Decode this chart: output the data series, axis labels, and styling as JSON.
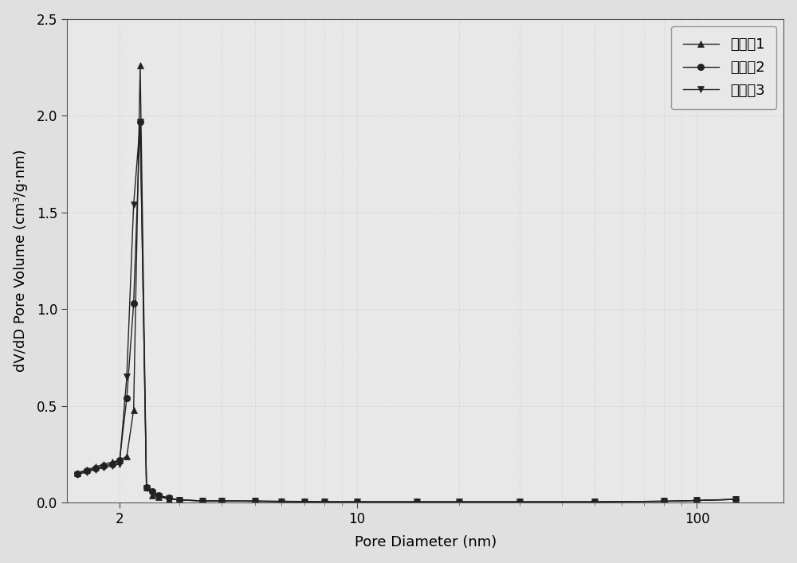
{
  "series": [
    {
      "label": "实施例1",
      "marker": "^",
      "color": "#222222",
      "x": [
        1.5,
        1.6,
        1.7,
        1.8,
        1.9,
        2.0,
        2.1,
        2.2,
        2.3,
        2.4,
        2.5,
        2.6,
        2.8,
        3.0,
        3.5,
        4.0,
        5.0,
        6.0,
        7.0,
        8.0,
        10.0,
        15.0,
        20.0,
        30.0,
        50.0,
        80.0,
        100.0,
        130.0
      ],
      "y": [
        0.155,
        0.17,
        0.185,
        0.2,
        0.21,
        0.22,
        0.24,
        0.48,
        2.26,
        0.08,
        0.04,
        0.03,
        0.02,
        0.015,
        0.01,
        0.01,
        0.01,
        0.008,
        0.007,
        0.006,
        0.005,
        0.005,
        0.005,
        0.005,
        0.005,
        0.008,
        0.012,
        0.018
      ]
    },
    {
      "label": "实施例2",
      "marker": "o",
      "color": "#222222",
      "x": [
        1.5,
        1.6,
        1.7,
        1.8,
        1.9,
        2.0,
        2.1,
        2.2,
        2.3,
        2.4,
        2.5,
        2.6,
        2.8,
        3.0,
        3.5,
        4.0,
        5.0,
        6.0,
        7.0,
        8.0,
        10.0,
        15.0,
        20.0,
        30.0,
        50.0,
        80.0,
        100.0,
        130.0
      ],
      "y": [
        0.15,
        0.165,
        0.178,
        0.19,
        0.2,
        0.22,
        0.54,
        1.03,
        1.97,
        0.08,
        0.06,
        0.04,
        0.025,
        0.015,
        0.01,
        0.01,
        0.008,
        0.006,
        0.005,
        0.005,
        0.005,
        0.005,
        0.005,
        0.005,
        0.005,
        0.008,
        0.012,
        0.018
      ]
    },
    {
      "label": "实施例3",
      "marker": "v",
      "color": "#222222",
      "x": [
        1.5,
        1.6,
        1.7,
        1.8,
        1.9,
        2.0,
        2.1,
        2.2,
        2.3,
        2.4,
        2.5,
        2.6,
        2.8,
        3.0,
        3.5,
        4.0,
        5.0,
        6.0,
        7.0,
        8.0,
        10.0,
        15.0,
        20.0,
        30.0,
        50.0,
        80.0,
        100.0,
        130.0
      ],
      "y": [
        0.145,
        0.16,
        0.172,
        0.183,
        0.192,
        0.2,
        0.65,
        1.54,
        1.97,
        0.075,
        0.05,
        0.035,
        0.022,
        0.015,
        0.01,
        0.01,
        0.008,
        0.006,
        0.005,
        0.005,
        0.005,
        0.005,
        0.005,
        0.005,
        0.005,
        0.008,
        0.012,
        0.018
      ]
    }
  ],
  "xlabel": "Pore Diameter (nm)",
  "ylabel": "dV/dD Pore Volume (cm³/g·nm)",
  "xlim": [
    1.4,
    180
  ],
  "ylim": [
    0.0,
    2.5
  ],
  "yticks": [
    0.0,
    0.5,
    1.0,
    1.5,
    2.0,
    2.5
  ],
  "xtick_major": [
    2,
    10,
    100
  ],
  "xtick_major_labels": [
    "2",
    "10",
    "100"
  ],
  "background_color": "#e0e0e0",
  "plot_bg_color": "#e8e8e8",
  "grid_color": "#cccccc",
  "font_size_label": 13,
  "font_size_tick": 12,
  "font_size_legend": 13,
  "marker_size": 6,
  "line_width": 1.0
}
